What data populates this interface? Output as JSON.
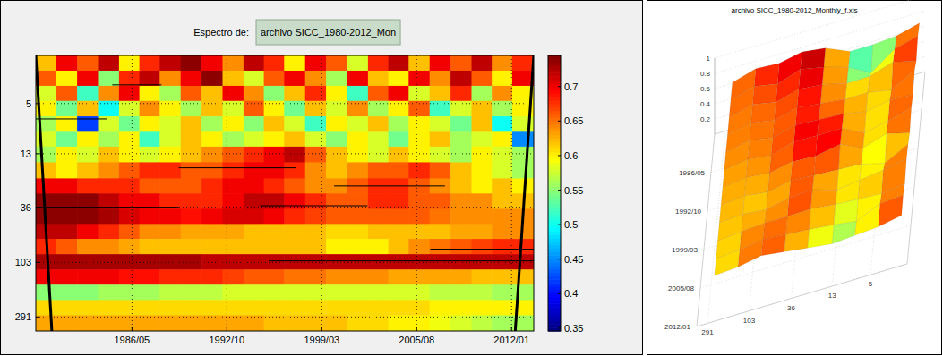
{
  "chart_data": [
    {
      "type": "heatmap",
      "title": "Espectro de:",
      "subtitle": "archivo SICC_1980-2012_Mon",
      "x": [
        6,
        23,
        40,
        57,
        74,
        90,
        107,
        124,
        141,
        158,
        175,
        191,
        208,
        225,
        242,
        259,
        276,
        292,
        309,
        326,
        343,
        360,
        376,
        393
      ],
      "y": [
        2.3,
        3.1,
        4.1,
        5.5,
        7.4,
        9.9,
        13,
        18,
        24,
        32,
        43,
        57,
        76,
        102,
        136,
        182,
        244,
        326
      ],
      "cells": [
        [
          0.62,
          0.7,
          0.66,
          0.72,
          0.6,
          0.68,
          0.72,
          0.74,
          0.7,
          0.64,
          0.72,
          0.68,
          0.6,
          0.7,
          0.66,
          0.58,
          0.68,
          0.72,
          0.62,
          0.7,
          0.66,
          0.72,
          0.64,
          0.68
        ],
        [
          0.66,
          0.6,
          0.7,
          0.55,
          0.68,
          0.72,
          0.64,
          0.7,
          0.74,
          0.62,
          0.58,
          0.66,
          0.7,
          0.64,
          0.56,
          0.7,
          0.62,
          0.6,
          0.7,
          0.64,
          0.72,
          0.66,
          0.6,
          0.7
        ],
        [
          0.58,
          0.66,
          0.52,
          0.64,
          0.7,
          0.6,
          0.56,
          0.66,
          0.62,
          0.7,
          0.64,
          0.55,
          0.62,
          0.68,
          0.6,
          0.52,
          0.66,
          0.7,
          0.58,
          0.62,
          0.68,
          0.56,
          0.64,
          0.6
        ],
        [
          0.6,
          0.54,
          0.62,
          0.5,
          0.58,
          0.64,
          0.6,
          0.56,
          0.62,
          0.58,
          0.66,
          0.6,
          0.54,
          0.62,
          0.58,
          0.64,
          0.56,
          0.6,
          0.66,
          0.52,
          0.58,
          0.62,
          0.56,
          0.6
        ],
        [
          0.56,
          0.6,
          0.42,
          0.58,
          0.54,
          0.6,
          0.58,
          0.62,
          0.56,
          0.6,
          0.55,
          0.62,
          0.58,
          0.52,
          0.6,
          0.58,
          0.62,
          0.56,
          0.6,
          0.58,
          0.54,
          0.62,
          0.5,
          0.58
        ],
        [
          0.58,
          0.54,
          0.6,
          0.56,
          0.6,
          0.52,
          0.58,
          0.62,
          0.6,
          0.56,
          0.58,
          0.6,
          0.62,
          0.58,
          0.55,
          0.6,
          0.58,
          0.54,
          0.6,
          0.62,
          0.56,
          0.58,
          0.6,
          0.45
        ],
        [
          0.56,
          0.6,
          0.58,
          0.62,
          0.6,
          0.58,
          0.6,
          0.62,
          0.64,
          0.66,
          0.68,
          0.7,
          0.72,
          0.66,
          0.62,
          0.6,
          0.58,
          0.62,
          0.6,
          0.58,
          0.56,
          0.6,
          0.58,
          0.56
        ],
        [
          0.62,
          0.6,
          0.62,
          0.64,
          0.66,
          0.68,
          0.68,
          0.66,
          0.66,
          0.68,
          0.7,
          0.7,
          0.68,
          0.64,
          0.62,
          0.64,
          0.66,
          0.66,
          0.68,
          0.66,
          0.62,
          0.6,
          0.58,
          0.56
        ],
        [
          0.7,
          0.7,
          0.68,
          0.68,
          0.68,
          0.66,
          0.66,
          0.66,
          0.68,
          0.7,
          0.7,
          0.68,
          0.66,
          0.64,
          0.64,
          0.66,
          0.68,
          0.68,
          0.66,
          0.64,
          0.62,
          0.6,
          0.62,
          0.6
        ],
        [
          0.74,
          0.74,
          0.74,
          0.72,
          0.7,
          0.7,
          0.68,
          0.68,
          0.68,
          0.7,
          0.72,
          0.72,
          0.7,
          0.68,
          0.66,
          0.66,
          0.68,
          0.68,
          0.66,
          0.66,
          0.64,
          0.64,
          0.62,
          0.62
        ],
        [
          0.74,
          0.74,
          0.74,
          0.73,
          0.71,
          0.7,
          0.7,
          0.69,
          0.7,
          0.71,
          0.71,
          0.7,
          0.68,
          0.67,
          0.66,
          0.66,
          0.66,
          0.66,
          0.66,
          0.65,
          0.64,
          0.64,
          0.64,
          0.64
        ],
        [
          0.72,
          0.72,
          0.7,
          0.68,
          0.66,
          0.64,
          0.64,
          0.63,
          0.63,
          0.63,
          0.62,
          0.62,
          0.62,
          0.62,
          0.61,
          0.61,
          0.62,
          0.62,
          0.62,
          0.62,
          0.63,
          0.63,
          0.64,
          0.64
        ],
        [
          0.68,
          0.66,
          0.64,
          0.64,
          0.63,
          0.62,
          0.62,
          0.62,
          0.62,
          0.62,
          0.62,
          0.62,
          0.62,
          0.62,
          0.6,
          0.6,
          0.6,
          0.62,
          0.64,
          0.65,
          0.66,
          0.67,
          0.68,
          0.68
        ],
        [
          0.73,
          0.73,
          0.73,
          0.73,
          0.73,
          0.73,
          0.73,
          0.73,
          0.72,
          0.72,
          0.72,
          0.72,
          0.72,
          0.72,
          0.72,
          0.72,
          0.72,
          0.72,
          0.72,
          0.72,
          0.72,
          0.72,
          0.72,
          0.72
        ],
        [
          0.7,
          0.7,
          0.7,
          0.7,
          0.69,
          0.69,
          0.68,
          0.68,
          0.68,
          0.67,
          0.66,
          0.66,
          0.65,
          0.65,
          0.64,
          0.64,
          0.64,
          0.63,
          0.63,
          0.63,
          0.63,
          0.62,
          0.62,
          0.62
        ],
        [
          0.55,
          0.55,
          0.55,
          0.56,
          0.56,
          0.56,
          0.57,
          0.57,
          0.57,
          0.58,
          0.58,
          0.58,
          0.58,
          0.58,
          0.58,
          0.58,
          0.58,
          0.58,
          0.58,
          0.57,
          0.57,
          0.57,
          0.56,
          0.56
        ],
        [
          0.61,
          0.61,
          0.61,
          0.61,
          0.61,
          0.61,
          0.61,
          0.61,
          0.61,
          0.61,
          0.61,
          0.61,
          0.61,
          0.61,
          0.61,
          0.61,
          0.61,
          0.61,
          0.61,
          0.6,
          0.6,
          0.6,
          0.6,
          0.6
        ],
        [
          0.63,
          0.63,
          0.63,
          0.63,
          0.63,
          0.63,
          0.63,
          0.63,
          0.63,
          0.63,
          0.63,
          0.62,
          0.62,
          0.62,
          0.62,
          0.61,
          0.61,
          0.6,
          0.6,
          0.59,
          0.58,
          0.57,
          0.56,
          0.56
        ]
      ],
      "xlim": [
        -2,
        402
      ],
      "ylim": [
        2,
        380
      ],
      "log": "y",
      "grid": true,
      "xticks": [
        {
          "value": 76,
          "label": "1986/05"
        },
        {
          "value": 153,
          "label": "1992/10"
        },
        {
          "value": 230,
          "label": "1999/03"
        },
        {
          "value": 307,
          "label": "2005/08"
        },
        {
          "value": 384,
          "label": "2012/01"
        }
      ],
      "yticks": [
        5,
        13,
        36,
        103,
        291
      ],
      "colorbar": {
        "range": [
          0.346,
          0.745
        ],
        "ticks": [
          0.35,
          0.4,
          0.45,
          0.5,
          0.55,
          0.6,
          0.65,
          0.7
        ]
      },
      "ridges": {
        "period": [
          100,
          80,
          36,
          35,
          17,
          6.7,
          24,
          3.5
        ],
        "x0": [
          187,
          318,
          -2,
          180,
          114,
          -2,
          240,
          60
        ],
        "x1": [
          402,
          402,
          114,
          267,
          209,
          56,
          330,
          100
        ]
      },
      "cone_of_influence": {
        "period": [
          2,
          380
        ],
        "left": [
          -2,
          11
        ],
        "right": [
          402,
          387
        ]
      }
    },
    {
      "type": "surface",
      "title": "archivo SICC_1980-2012_Monthly_f.xls",
      "x": [
        0,
        35,
        70,
        105,
        140,
        175,
        210,
        245,
        280,
        315,
        350,
        384
      ],
      "y": [
        2.3,
        4.1,
        7.4,
        13,
        24,
        43,
        76,
        136,
        244
      ],
      "z": [
        [
          0.66,
          0.72,
          0.62,
          0.74,
          0.64,
          0.7,
          0.6,
          0.68,
          0.72,
          0.62,
          0.7,
          0.66
        ],
        [
          0.58,
          0.64,
          0.7,
          0.56,
          0.66,
          0.62,
          0.68,
          0.52,
          0.66,
          0.58,
          0.68,
          0.6
        ],
        [
          0.56,
          0.42,
          0.6,
          0.62,
          0.6,
          0.55,
          0.58,
          0.6,
          0.62,
          0.6,
          0.54,
          0.58
        ],
        [
          0.56,
          0.58,
          0.6,
          0.62,
          0.66,
          0.7,
          0.72,
          0.62,
          0.58,
          0.62,
          0.58,
          0.56
        ],
        [
          0.7,
          0.68,
          0.68,
          0.66,
          0.68,
          0.7,
          0.66,
          0.64,
          0.68,
          0.66,
          0.62,
          0.6
        ],
        [
          0.74,
          0.74,
          0.71,
          0.7,
          0.7,
          0.71,
          0.68,
          0.66,
          0.66,
          0.65,
          0.64,
          0.64
        ],
        [
          0.68,
          0.64,
          0.63,
          0.62,
          0.62,
          0.62,
          0.62,
          0.6,
          0.6,
          0.65,
          0.67,
          0.68
        ],
        [
          0.7,
          0.7,
          0.69,
          0.68,
          0.68,
          0.66,
          0.65,
          0.64,
          0.63,
          0.63,
          0.62,
          0.62
        ],
        [
          0.61,
          0.61,
          0.61,
          0.61,
          0.61,
          0.61,
          0.61,
          0.61,
          0.61,
          0.6,
          0.6,
          0.6
        ]
      ],
      "xlim": [
        0,
        384
      ],
      "ylim": [
        2,
        380
      ],
      "zlim": [
        0,
        1
      ],
      "log": "y",
      "grid": true,
      "xticks": [
        {
          "value": 76,
          "label": "1986/05"
        },
        {
          "value": 153,
          "label": "1992/10"
        },
        {
          "value": 230,
          "label": "1999/03"
        },
        {
          "value": 307,
          "label": "2005/08"
        },
        {
          "value": 384,
          "label": "2012/01"
        }
      ],
      "yticks": [
        291,
        103,
        36,
        13,
        5
      ],
      "zticks": [
        0.2,
        0.4,
        0.6,
        0.8,
        1
      ],
      "color_range": [
        0.346,
        0.745
      ]
    }
  ]
}
